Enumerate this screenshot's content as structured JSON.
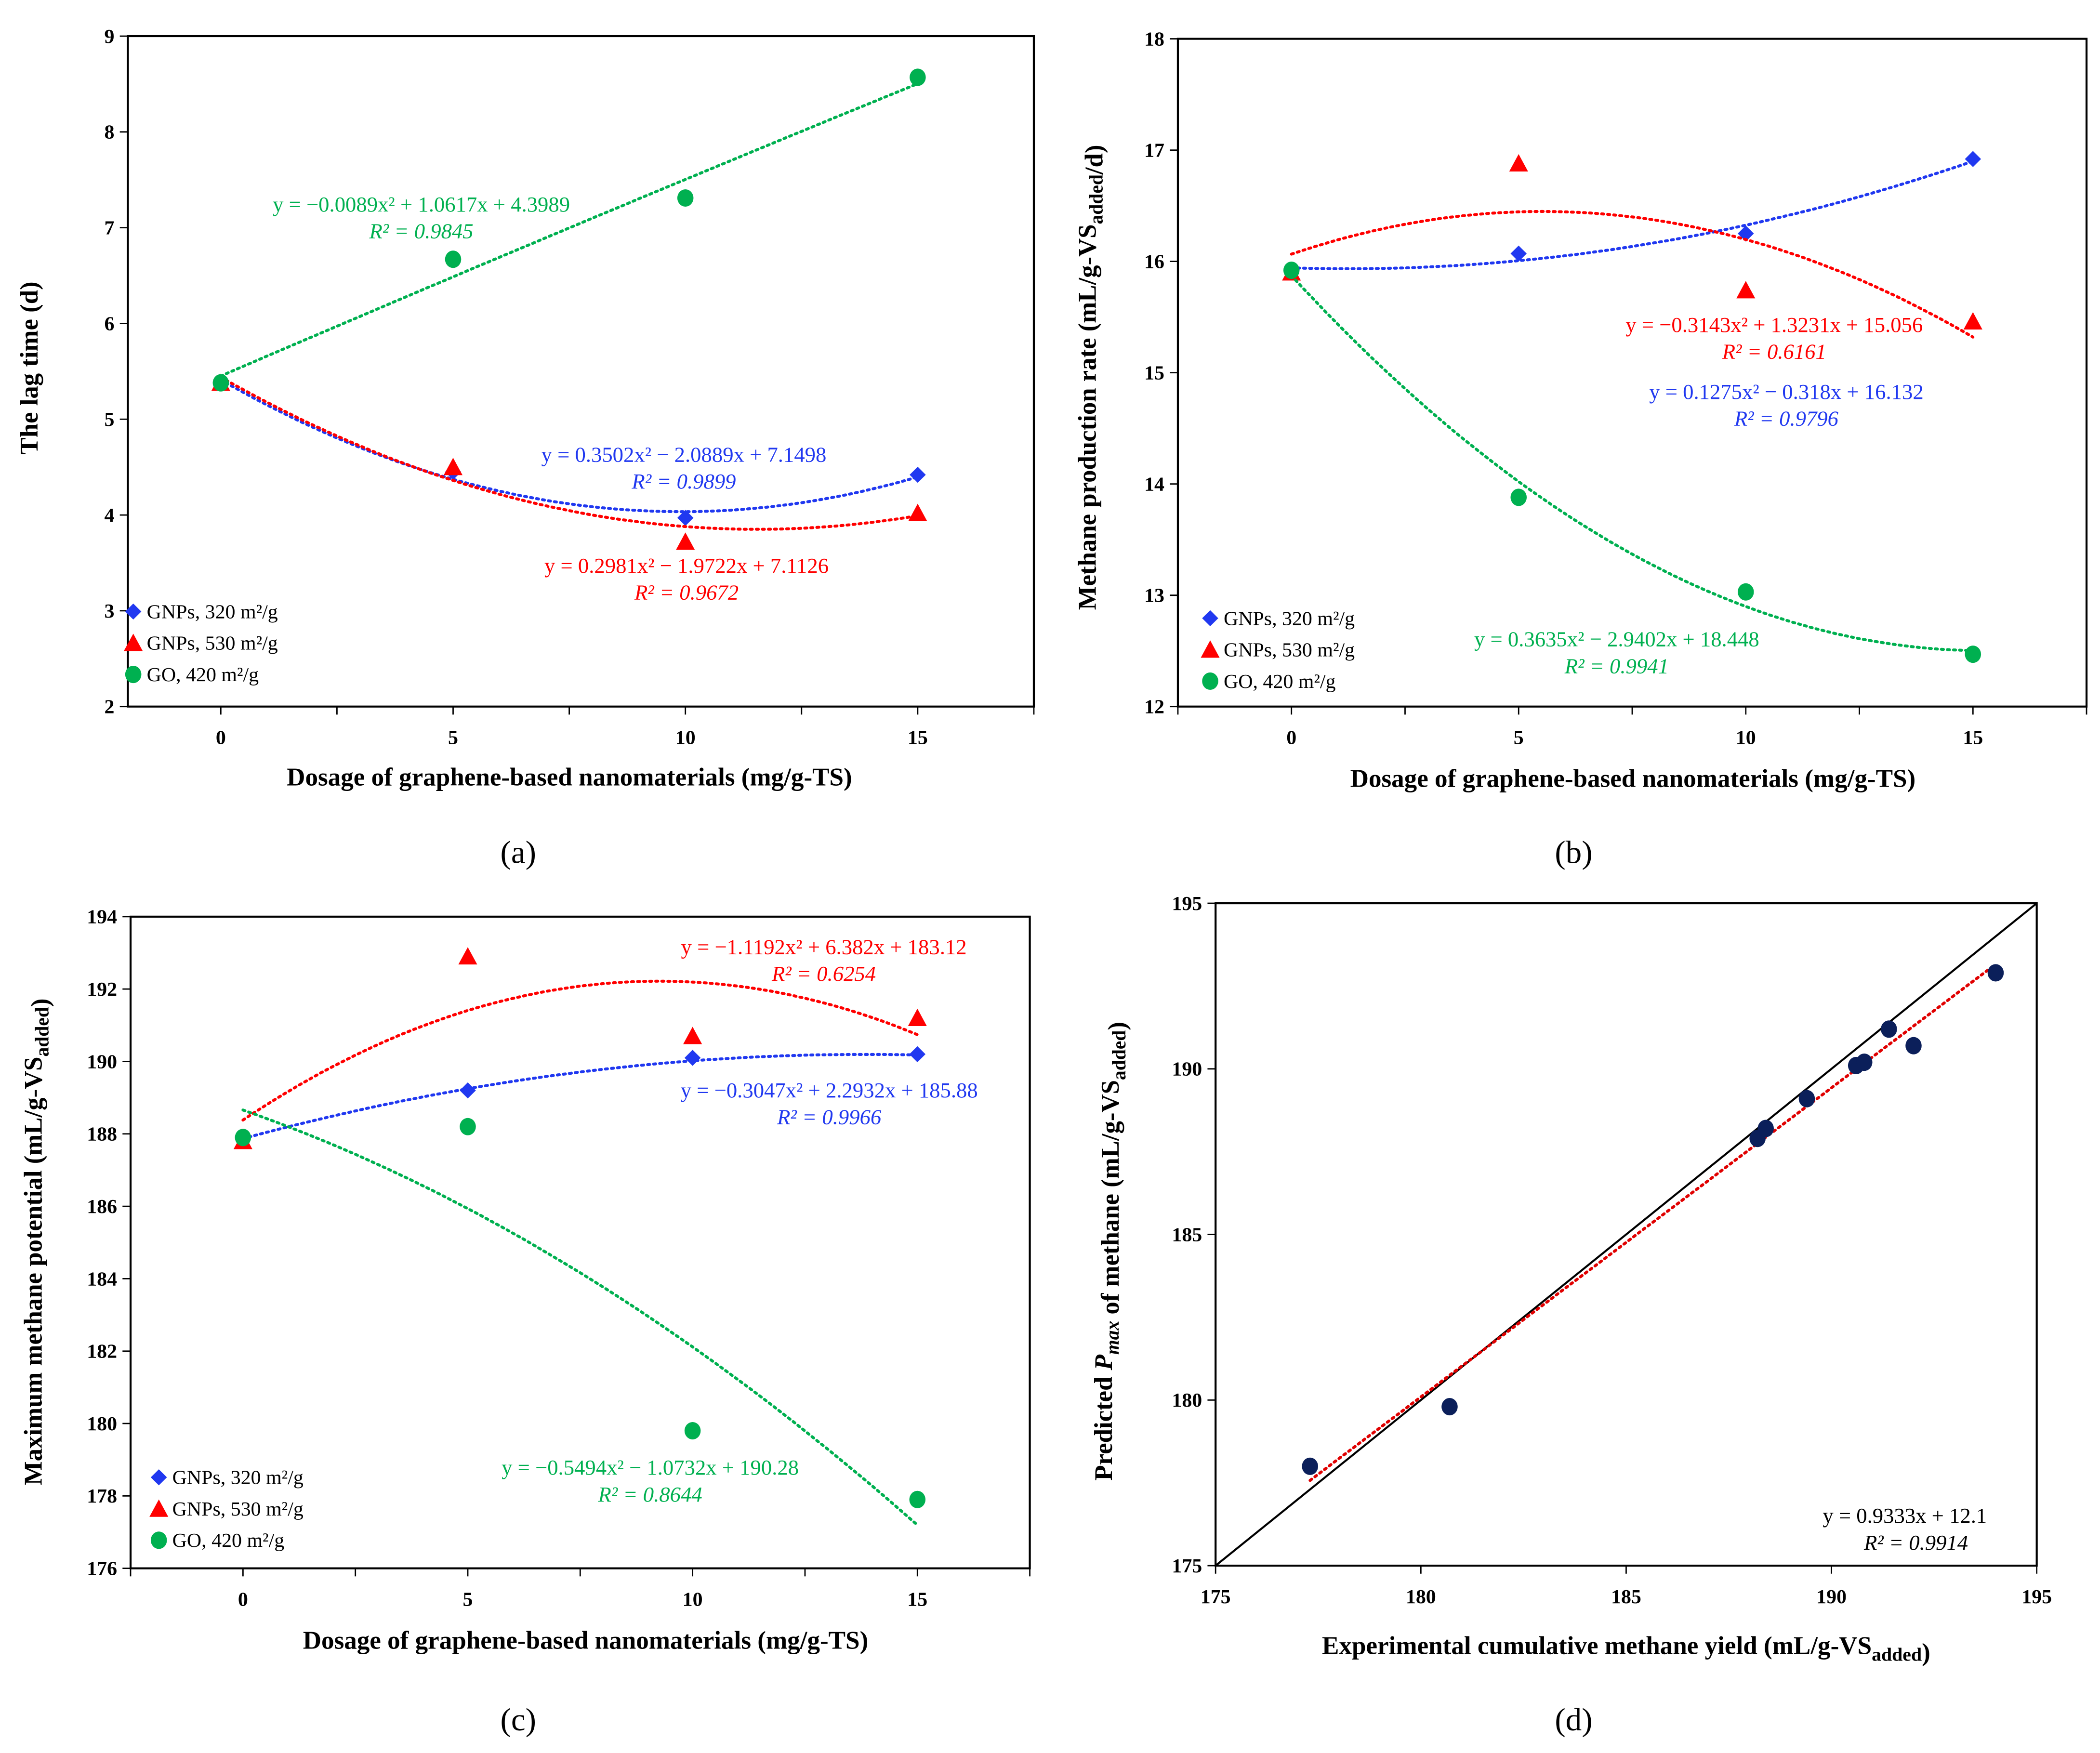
{
  "colors": {
    "gnp320": "#2038F0",
    "gnp530": "#FF0000",
    "go": "#00B050",
    "exp": "#0B1F5A",
    "fit_d": "#E00000"
  },
  "chart_data": [
    {
      "id": "a",
      "type": "scatter",
      "panel_label": "(a)",
      "title": "",
      "xlabel": "Dosage of graphene-based nanomaterials (mg/g-TS)",
      "ylabel_parts": [
        {
          "text": "The lag time (d)"
        }
      ],
      "xlim": [
        -2,
        17.5
      ],
      "ylim": [
        2,
        9
      ],
      "xticks": [
        0,
        5,
        10,
        15
      ],
      "yticks": [
        2,
        3,
        4,
        5,
        6,
        7,
        8,
        9
      ],
      "grid": false,
      "legend": "bottom-left",
      "series": [
        {
          "key": "gnp320",
          "name": "GNPs, 320 m²/g",
          "marker": "diamond",
          "x": [
            0,
            5,
            10,
            15
          ],
          "y": [
            5.38,
            4.45,
            3.97,
            4.42
          ],
          "fit": [
            0.3502,
            -2.0889,
            7.1498
          ],
          "equation": "y = 0.3502x² − 2.0889x + 7.1498",
          "r2": "R² = 0.9899"
        },
        {
          "key": "gnp530",
          "name": "GNPs, 530 m²/g",
          "marker": "triangle",
          "x": [
            0,
            5,
            10,
            15
          ],
          "y": [
            5.38,
            4.5,
            3.72,
            4.02
          ],
          "fit": [
            0.2981,
            -1.9722,
            7.1126
          ],
          "equation": "y = 0.2981x² − 1.9722x + 7.1126",
          "r2": "R² = 0.9672"
        },
        {
          "key": "go",
          "name": "GO, 420 m²/g",
          "marker": "circle",
          "x": [
            0,
            5,
            10,
            15
          ],
          "y": [
            5.38,
            6.67,
            7.31,
            8.57
          ],
          "fit": [
            -0.0089,
            1.0617,
            4.3989
          ],
          "equation": "y = −0.0089x² + 1.0617x + 4.3989",
          "r2": "R² = 0.9845"
        }
      ]
    },
    {
      "id": "b",
      "type": "scatter",
      "panel_label": "(b)",
      "title": "",
      "xlabel": "Dosage of graphene-based nanomaterials (mg/g-TS)",
      "ylabel_parts": [
        {
          "text": "Methane production rate (mL/g-VS"
        },
        {
          "text": "added",
          "sub": true
        },
        {
          "text": "/d)"
        }
      ],
      "xlim": [
        -2.5,
        17.5
      ],
      "ylim": [
        12,
        18
      ],
      "xticks": [
        0,
        5,
        10,
        15
      ],
      "yticks": [
        12,
        13,
        14,
        15,
        16,
        17,
        18
      ],
      "grid": false,
      "legend": "bottom-left",
      "series": [
        {
          "key": "gnp320",
          "name": "GNPs, 320 m²/g",
          "marker": "diamond",
          "x": [
            0,
            5,
            10,
            15
          ],
          "y": [
            15.92,
            16.07,
            16.25,
            16.92
          ],
          "fit": [
            0.1275,
            -0.318,
            16.132
          ],
          "equation": "y = 0.1275x² − 0.318x + 16.132",
          "r2": "R² = 0.9796"
        },
        {
          "key": "gnp530",
          "name": "GNPs, 530 m²/g",
          "marker": "triangle",
          "x": [
            0,
            5,
            10,
            15
          ],
          "y": [
            15.9,
            16.88,
            15.74,
            15.46
          ],
          "fit": [
            -0.3143,
            1.3231,
            15.056
          ],
          "equation": "y = −0.3143x² + 1.3231x + 15.056",
          "r2": "R² = 0.6161"
        },
        {
          "key": "go",
          "name": "GO, 420 m²/g",
          "marker": "circle",
          "x": [
            0,
            5,
            10,
            15
          ],
          "y": [
            15.92,
            13.88,
            13.03,
            12.47
          ],
          "fit": [
            0.3635,
            -2.9402,
            18.448
          ],
          "equation": "y = 0.3635x² − 2.9402x + 18.448",
          "r2": "R² = 0.9941"
        }
      ]
    },
    {
      "id": "c",
      "type": "scatter",
      "panel_label": "(c)",
      "title": "",
      "xlabel": "Dosage of graphene-based nanomaterials (mg/g-TS)",
      "ylabel_parts": [
        {
          "text": "Maximum methane potential (mL/g-VS"
        },
        {
          "text": "added",
          "sub": true
        },
        {
          "text": ")"
        }
      ],
      "xlim": [
        -2.5,
        17.5
      ],
      "ylim": [
        176,
        194
      ],
      "xticks": [
        0,
        5,
        10,
        15
      ],
      "yticks": [
        176,
        178,
        180,
        182,
        184,
        186,
        188,
        190,
        192,
        194
      ],
      "grid": false,
      "legend": "bottom-left",
      "series": [
        {
          "key": "gnp320",
          "name": "GNPs, 320 m²/g",
          "marker": "diamond",
          "x": [
            0,
            5,
            10,
            15
          ],
          "y": [
            187.9,
            189.2,
            190.1,
            190.2
          ],
          "fit": [
            -0.3047,
            2.2932,
            185.88
          ],
          "equation": "y = −0.3047x² + 2.2932x + 185.88",
          "r2": "R² = 0.9966"
        },
        {
          "key": "gnp530",
          "name": "GNPs, 530 m²/g",
          "marker": "triangle",
          "x": [
            0,
            5,
            10,
            15
          ],
          "y": [
            187.8,
            192.9,
            190.7,
            191.2
          ],
          "fit": [
            -1.1192,
            6.382,
            183.12
          ],
          "equation": "y = −1.1192x² + 6.382x + 183.12",
          "r2": "R² = 0.6254"
        },
        {
          "key": "go",
          "name": "GO, 420 m²/g",
          "marker": "circle",
          "x": [
            0,
            5,
            10,
            15
          ],
          "y": [
            187.9,
            188.2,
            179.8,
            177.9
          ],
          "fit": [
            -0.5494,
            -1.0732,
            190.28
          ],
          "equation": "y = −0.5494x² − 1.0732x + 190.28",
          "r2": "R² = 0.8644"
        }
      ]
    },
    {
      "id": "d",
      "type": "scatter",
      "panel_label": "(d)",
      "title": "",
      "xlabel_parts": [
        {
          "text": "Experimental cumulative methane yield (mL/g-VS"
        },
        {
          "text": "added",
          "sub": true
        },
        {
          "text": ")"
        }
      ],
      "ylabel_parts": [
        {
          "text": "Predicted "
        },
        {
          "text": "P",
          "italic": true
        },
        {
          "text": "max",
          "sub": true,
          "italic": true
        },
        {
          "text": " of methane (mL/g-VS"
        },
        {
          "text": "added",
          "sub": true
        },
        {
          "text": ")"
        }
      ],
      "xlim": [
        175,
        195
      ],
      "ylim": [
        175,
        195
      ],
      "xticks": [
        175,
        180,
        185,
        190,
        195
      ],
      "yticks": [
        175,
        180,
        185,
        190,
        195
      ],
      "grid": false,
      "series": [
        {
          "key": "exp",
          "name": "Experimental vs predicted",
          "marker": "circle",
          "x": [
            177.3,
            180.7,
            188.2,
            188.4,
            189.4,
            190.6,
            190.8,
            191.4,
            192.0,
            194.0
          ],
          "y": [
            178.0,
            179.8,
            187.9,
            188.2,
            189.1,
            190.1,
            190.2,
            191.2,
            190.7,
            192.9
          ],
          "fit": [
            0,
            0.9333,
            12.1
          ],
          "equation": "y = 0.9333x + 12.1",
          "r2": "R² = 0.9914"
        }
      ],
      "reference_line": "y = x"
    }
  ]
}
